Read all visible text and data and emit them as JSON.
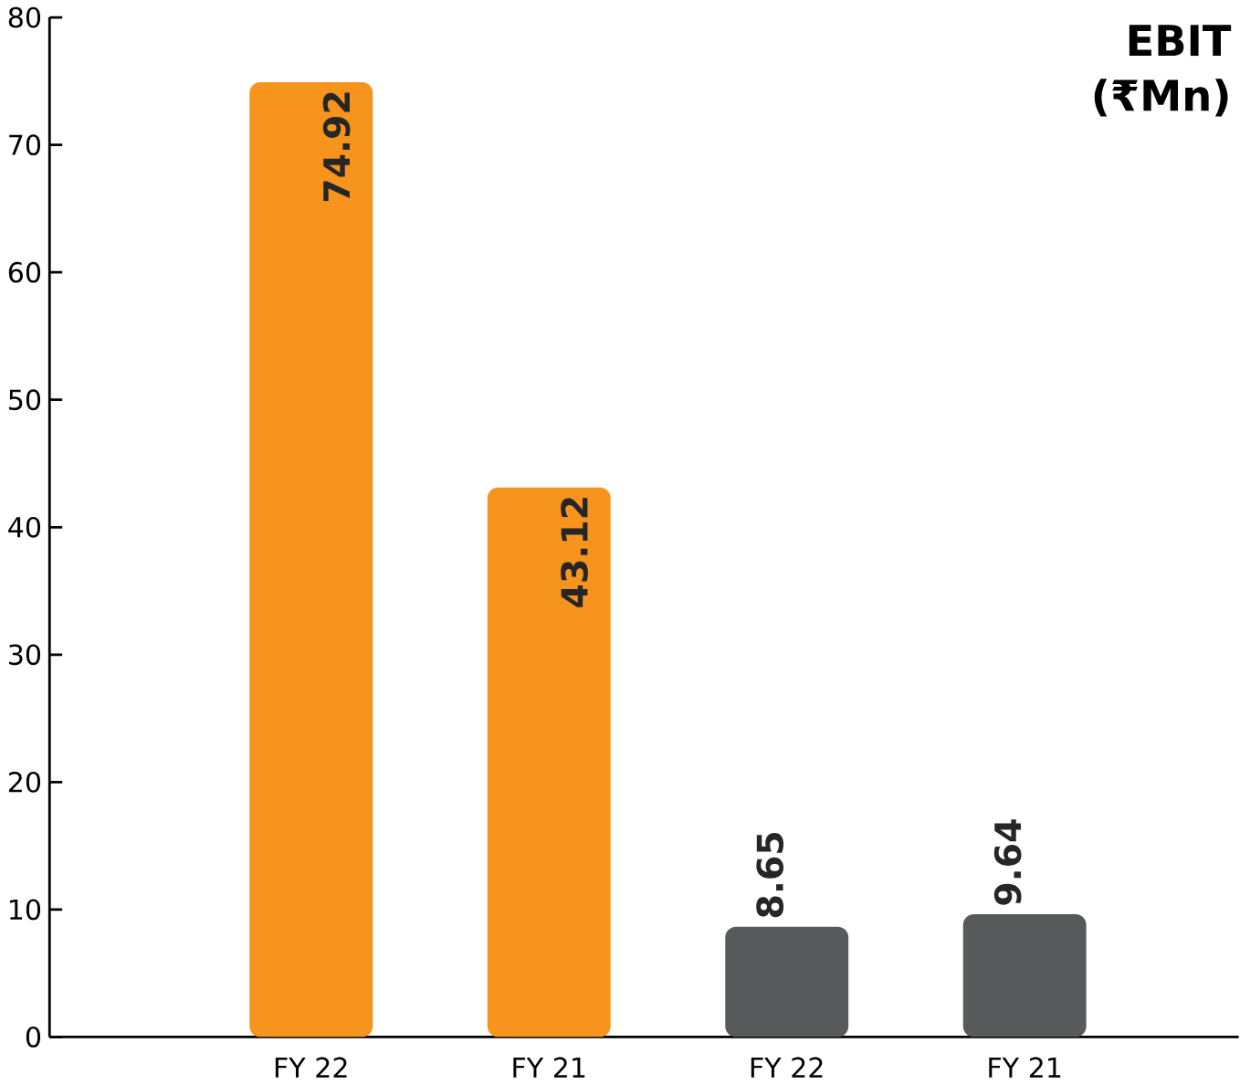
{
  "chart_data": {
    "type": "bar",
    "title": "EBIT (₹Mn)",
    "categories": [
      "FY 22",
      "FY 21",
      "FY 22",
      "FY 21"
    ],
    "values": [
      74.92,
      43.12,
      8.65,
      9.64
    ],
    "colors": [
      "#f7941d",
      "#f7941d",
      "#58595b",
      "#58595b"
    ],
    "ylim": [
      0,
      80
    ],
    "yticks": [
      0,
      10,
      20,
      30,
      40,
      50,
      60,
      70,
      80
    ],
    "data_labels": true,
    "grid": false
  }
}
